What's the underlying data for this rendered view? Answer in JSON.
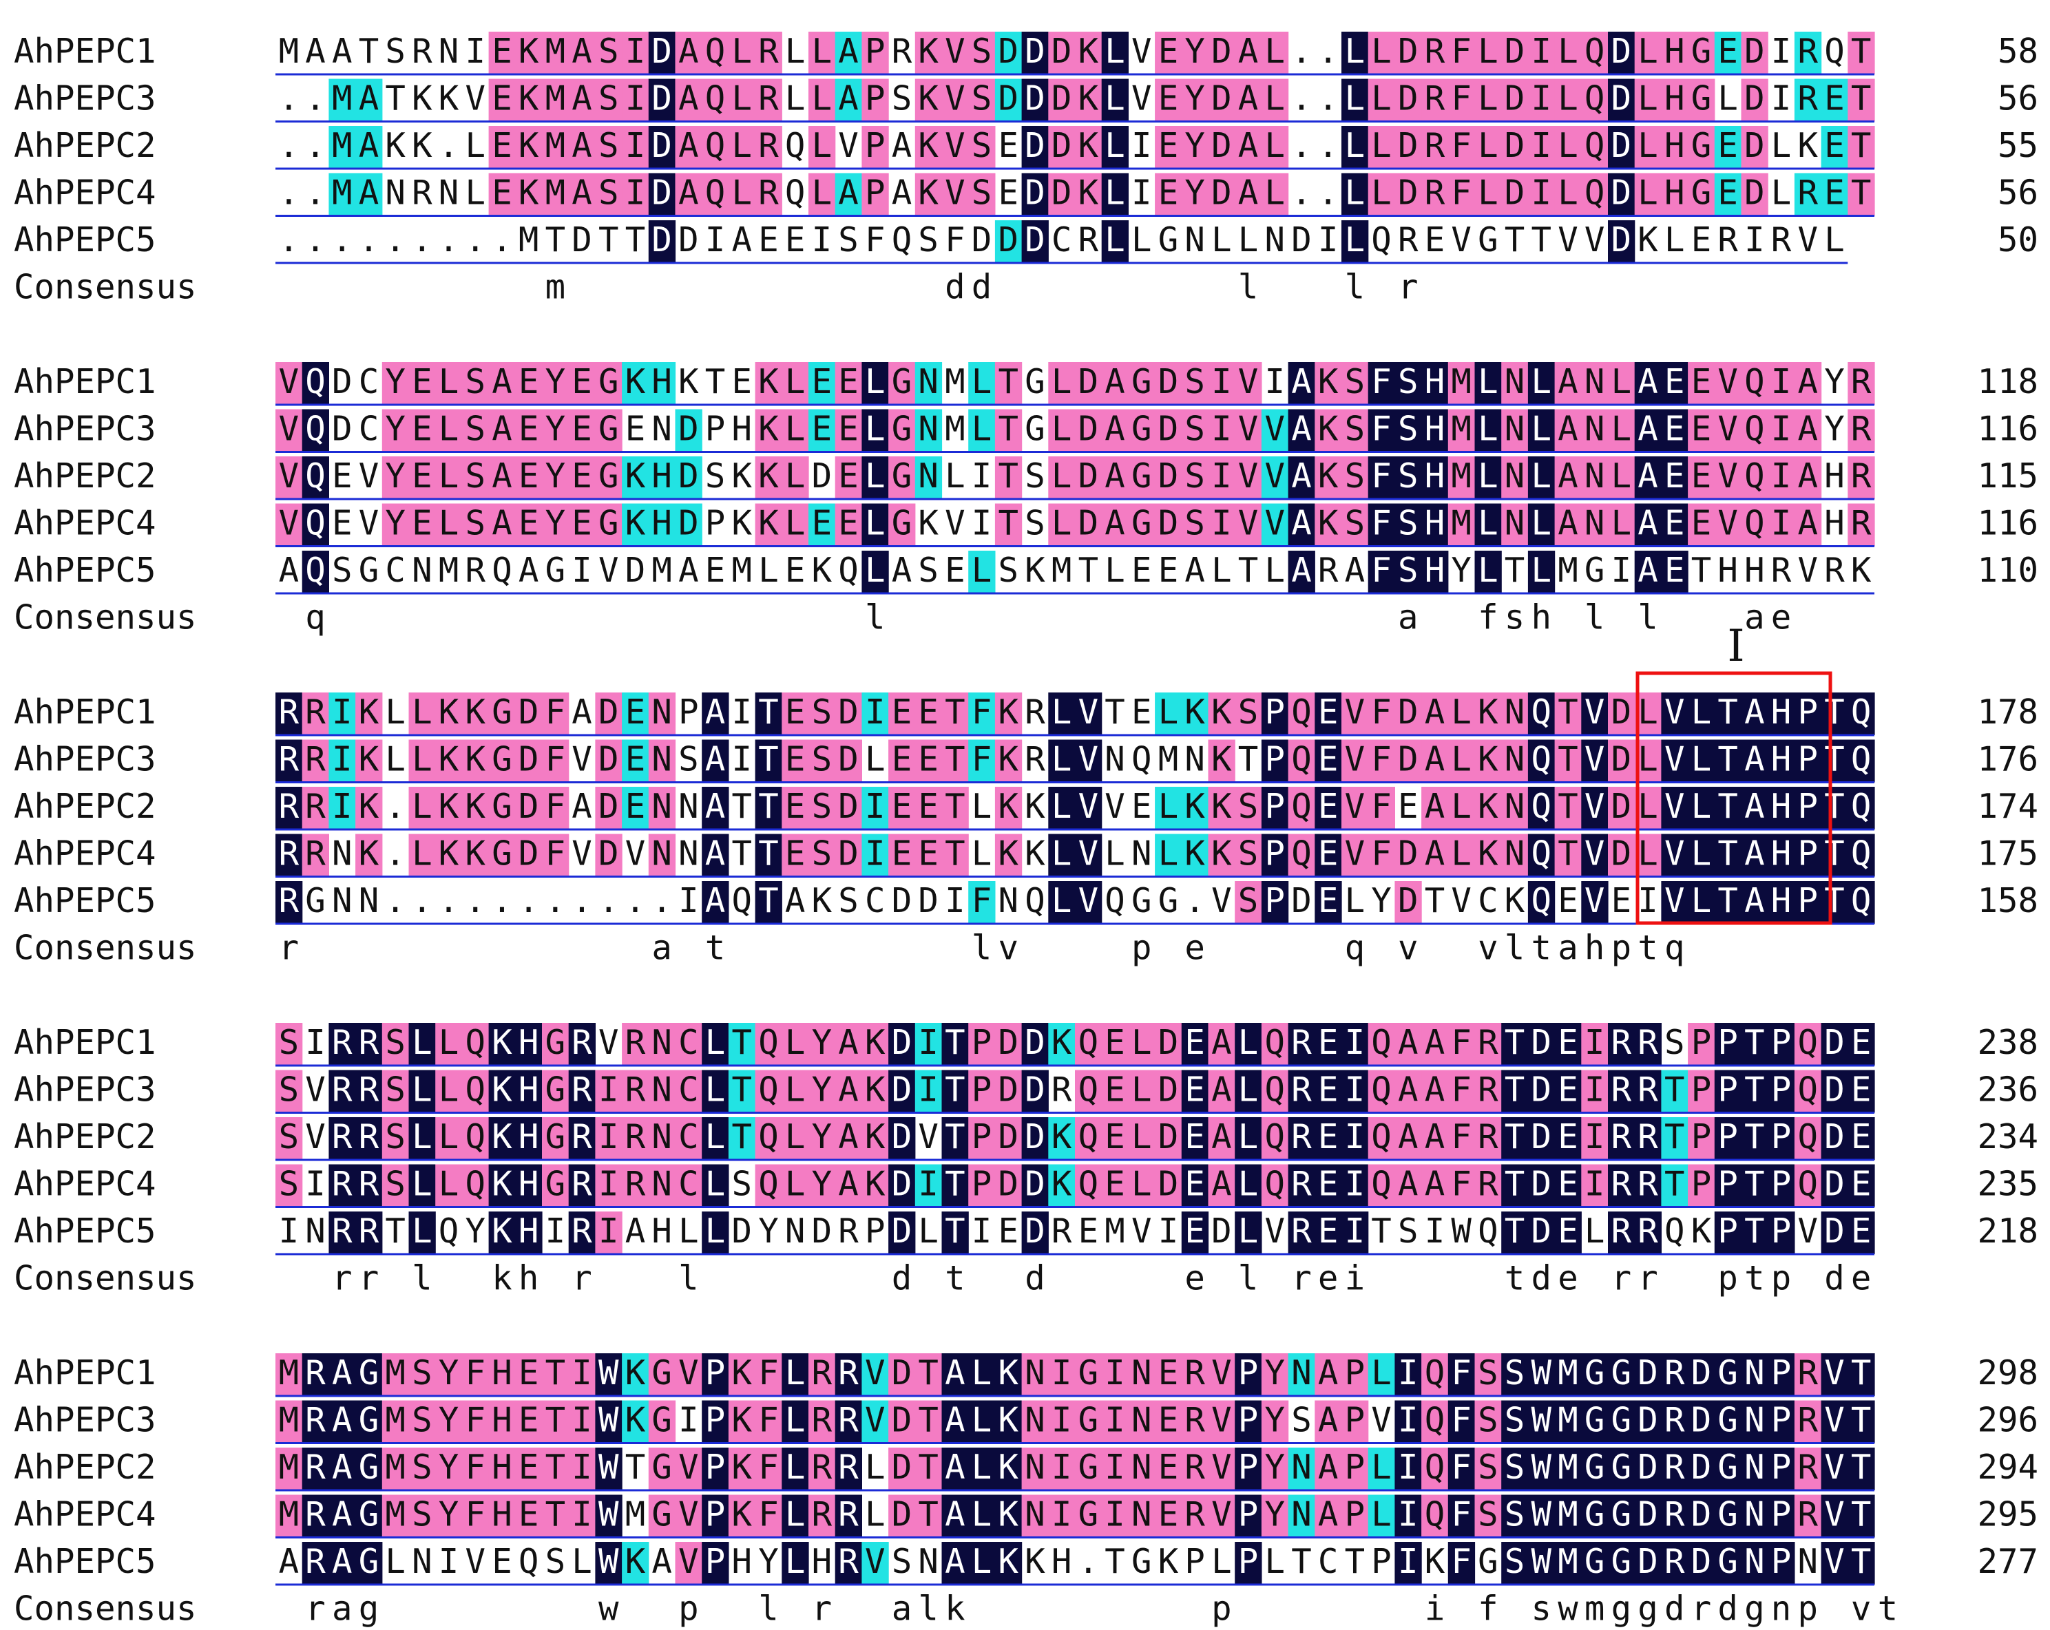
{
  "alignment": {
    "blocks": [
      {
        "rows": [
          {
            "name": "AhPEPC1",
            "seq": "MAATSRNIEKMASIDAQLRLLAPRKVSDDDKLVEYDAL..LLDRFLDILQDLHGEDIRQT",
            "end": "58"
          },
          {
            "name": "AhPEPC3",
            "seq": "..MATKKVEKMASIDAQLRLLAPSKVSDDDKLVEYDAL..LLDRFLDILQDLHGLDIRET",
            "end": "56"
          },
          {
            "name": "AhPEPC2",
            "seq": "..MAKK.LEKMASIDAQLRQLVPAKVSEDDKLIEYDAL..LLDRFLDILQDLHGEDLKET",
            "end": "55"
          },
          {
            "name": "AhPEPC4",
            "seq": "..MANRNLEKMASIDAQLRQLAPAKVSEDDKLIEYDAL..LLDRFLDILQDLHGEDLRET",
            "end": "56"
          },
          {
            "name": "AhPEPC5",
            "seq": ".........MTDTTDDIAEEISFQSFDDDCRLLGNLLNDILQREVGTTVVDKLERIRVL",
            "end": "50"
          }
        ],
        "consensus": {
          "name": "Consensus",
          "seq": "          m              dd         l   l r                 "
        }
      },
      {
        "rows": [
          {
            "name": "AhPEPC1",
            "seq": "VQDCYELSAEYEGKHKTEKLEELGNMLTGLDAGDSIVIAKSFSHMLNLANLAEEVQIAYR",
            "end": "118"
          },
          {
            "name": "AhPEPC3",
            "seq": "VQDCYELSAEYEGENDPHKLEELGNMLTGLDAGDSIVVAKSFSHMLNLANLAEEVQIAYR",
            "end": "116"
          },
          {
            "name": "AhPEPC2",
            "seq": "VQEVYELSAEYEGKHDSKKLDELGNLITSLDAGDSIVVAKSFSHMLNLANLAEEVQIAHR",
            "end": "115"
          },
          {
            "name": "AhPEPC4",
            "seq": "VQEVYELSAEYEGKHDPKKLEELGKVITSLDAGDSIVVAKSFSHMLNLANLAEEVQIAHR",
            "end": "116"
          },
          {
            "name": "AhPEPC5",
            "seq": "AQSGCNMRQAGIVDMAEMLEKQLASELSKMTLEEALTLARAFSHYLTLMGIAETHHRVRK",
            "end": "110"
          }
        ],
        "consensus": {
          "name": "Consensus",
          "seq": " q                    l                   a  fsh l l   ae     "
        }
      },
      {
        "rows": [
          {
            "name": "AhPEPC1",
            "seq": "RRIKLLKKGDFADENPAITESDIEETFKRLVTELKKSPQEVFDALKNQTVDLVLTAHPTQ",
            "end": "178"
          },
          {
            "name": "AhPEPC3",
            "seq": "RRIKLLKKGDFVDENSAITESDLEETFKRLVNQMNKTPQEVFDALKNQTVDLVLTAHPTQ",
            "end": "176"
          },
          {
            "name": "AhPEPC2",
            "seq": "RRIK.LKKGDFADENNATTESDIEETLKKLVVELKKSPQEVFEALKNQTVDLVLTAHPTQ",
            "end": "174"
          },
          {
            "name": "AhPEPC4",
            "seq": "RRNK.LKKGDFVDVNNATTESDIEETLKKLVLNLKKSPQEVFDALKNQTVDLVLTAHPTQ",
            "end": "175"
          },
          {
            "name": "AhPEPC5",
            "seq": "RGNN...........IAQTAKSCDDIFNQLVQGG.VSPDELYDTVCKQEVEIVLTAHPTQ",
            "end": "158"
          }
        ],
        "consensus": {
          "name": "Consensus",
          "seq": "r             a t         lv    p e     q v  vltahptq"
        },
        "region_label": "I"
      },
      {
        "rows": [
          {
            "name": "AhPEPC1",
            "seq": "SIRRSLLQKHGRVRNCLTQLYAKDITPDDKQELDEALQREIQAAFRTDEIRRSPPTPQDE",
            "end": "238"
          },
          {
            "name": "AhPEPC3",
            "seq": "SVRRSLLQKHGRIRNCLTQLYAKDITPDDRQELDEALQREIQAAFRTDEIRRTPPTPQDE",
            "end": "236"
          },
          {
            "name": "AhPEPC2",
            "seq": "SVRRSLLQKHGRIRNCLTQLYAKDVTPDDKQELDEALQREIQAAFRTDEIRRTPPTPQDE",
            "end": "234"
          },
          {
            "name": "AhPEPC4",
            "seq": "SIRRSLLQKHGRIRNCLSQLYAKDITPDDKQELDEALQREIQAAFRTDEIRRTPPTPQDE",
            "end": "235"
          },
          {
            "name": "AhPEPC5",
            "seq": "INRRTLQYKHIRIAHLLDYNDRPDLTIEDREMVIEDLVREITSIWQTDELRRQKPTPVDE",
            "end": "218"
          }
        ],
        "consensus": {
          "name": "Consensus",
          "seq": "  rr l  kh r   l       d t  d     e l rei     tde rr  ptp de"
        }
      },
      {
        "rows": [
          {
            "name": "AhPEPC1",
            "seq": "MRAGMSYFHETIWKGVPKFLRRVDTALKNIGINERVPYNAPLIQFSSWMGGDRDGNPRVT",
            "end": "298"
          },
          {
            "name": "AhPEPC3",
            "seq": "MRAGMSYFHETIWKGIPKFLRRVDTALKNIGINERVPYSAPVIQFSSWMGGDRDGNPRVT",
            "end": "296"
          },
          {
            "name": "AhPEPC2",
            "seq": "MRAGMSYFHETIWTGVPKFLRRLDTALKNIGINERVPYNAPLIQFSSWMGGDRDGNPRVT",
            "end": "294"
          },
          {
            "name": "AhPEPC4",
            "seq": "MRAGMSYFHETIWMGVPKFLRRLDTALKNIGINERVPYNAPLIQFSSWMGGDRDGNPRVT",
            "end": "295"
          },
          {
            "name": "AhPEPC5",
            "seq": "ARAGLNIVEQSLWKAVPHYLHRVSNALKKH.TGKPLPLTCTPIKFGSWMGGDRDGNPNVT",
            "end": "277"
          }
        ],
        "consensus": {
          "name": "Consensus",
          "seq": " rag        w  p  l r  alk         p       i f swmggdrdgnp vt"
        }
      }
    ]
  },
  "colors": {
    "identical_bg": "#0a0a3c",
    "identical_fg": "#ffffff",
    "high_bg": "#f47cc3",
    "medium_bg": "#22e3e3",
    "text": "#111111",
    "underline": "#1b2bd6",
    "box": "#ee1111"
  }
}
